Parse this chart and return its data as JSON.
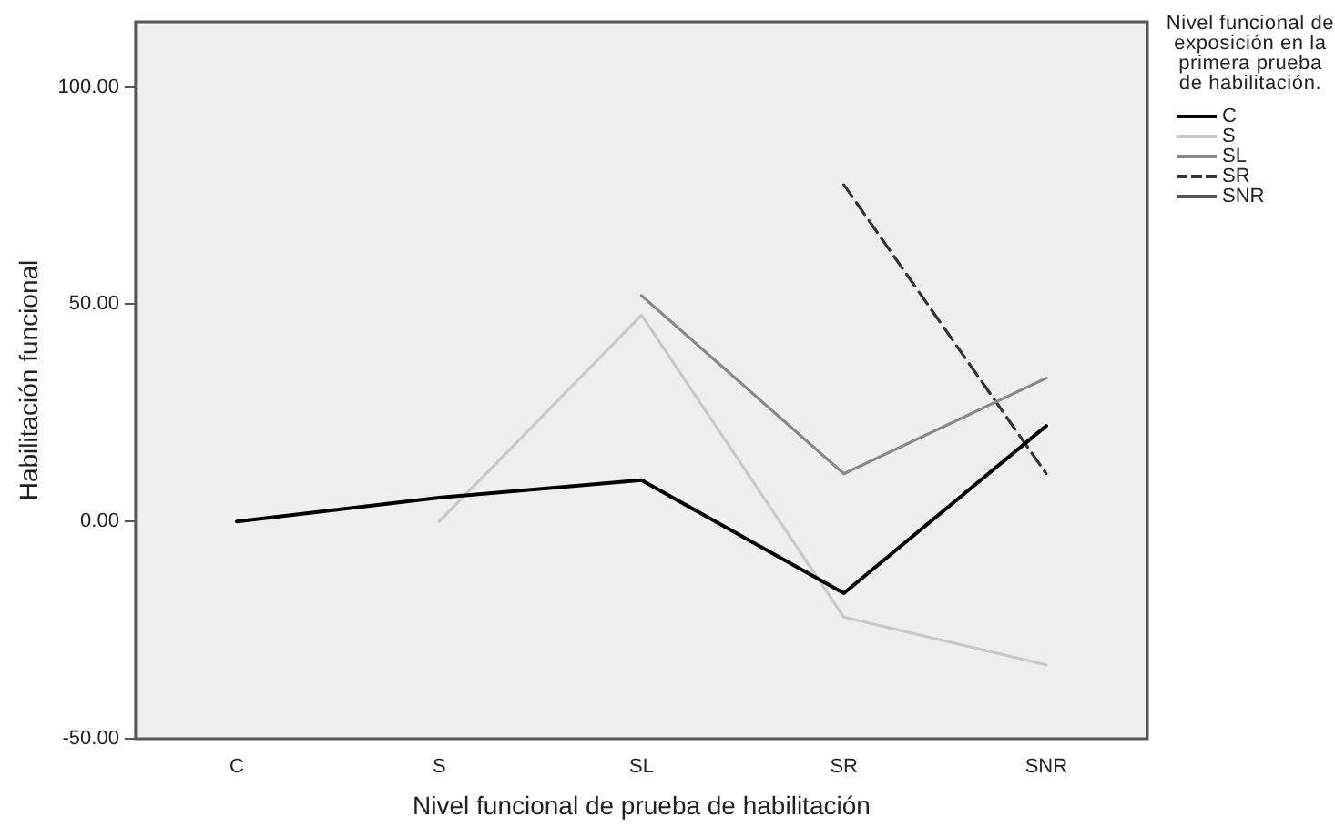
{
  "chart_data": {
    "type": "line",
    "xlabel": "Nivel funcional de prueba de habilitación",
    "ylabel": "Habilitación funcional",
    "legend_title": "Nivel funcional de exposición en la primera prueba de habilitación.",
    "categories": [
      "C",
      "S",
      "SL",
      "SR",
      "SNR"
    ],
    "series": [
      {
        "name": "C",
        "color": "#000000",
        "values": [
          0,
          5.5,
          9.5,
          -16.5,
          22
        ]
      },
      {
        "name": "S",
        "color": "#c8c8c8",
        "values": [
          null,
          0,
          47.5,
          -22,
          -33
        ]
      },
      {
        "name": "SL",
        "color": "#888888",
        "values": [
          null,
          null,
          52,
          11,
          33
        ]
      },
      {
        "name": "SR",
        "color": "#333333",
        "line_style": "dashed",
        "values": [
          null,
          null,
          null,
          77.5,
          11
        ]
      },
      {
        "name": "SNR",
        "color": "#555555",
        "values": [
          null,
          null,
          null,
          null,
          null
        ]
      }
    ],
    "ylim": [
      -50,
      115
    ],
    "yticks": [
      {
        "value": -50,
        "label": "-50.00"
      },
      {
        "value": 0,
        "label": "0.00"
      },
      {
        "value": 50,
        "label": "50.00"
      },
      {
        "value": 100,
        "label": "100.00"
      }
    ],
    "grid": false,
    "legend": "right",
    "marker": "none"
  }
}
